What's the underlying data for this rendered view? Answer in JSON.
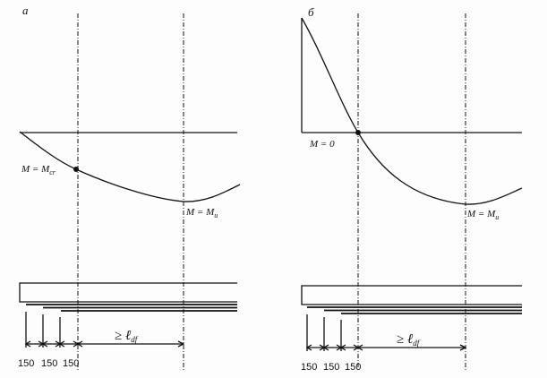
{
  "panel_a": {
    "label": "а",
    "point_label": "M = M",
    "point_sub": "cr",
    "max_label": "M = M",
    "max_sub": "u",
    "anchorage_label": "≥ ℓ",
    "anchorage_sub": "df",
    "spacings": [
      "150",
      "150",
      "150"
    ]
  },
  "panel_b": {
    "label": "б",
    "point_label": "M = 0",
    "max_label": "M = M",
    "max_sub": "u",
    "anchorage_label": "≥ ℓ",
    "anchorage_sub": "df",
    "spacings": [
      "150",
      "150",
      "150"
    ]
  }
}
